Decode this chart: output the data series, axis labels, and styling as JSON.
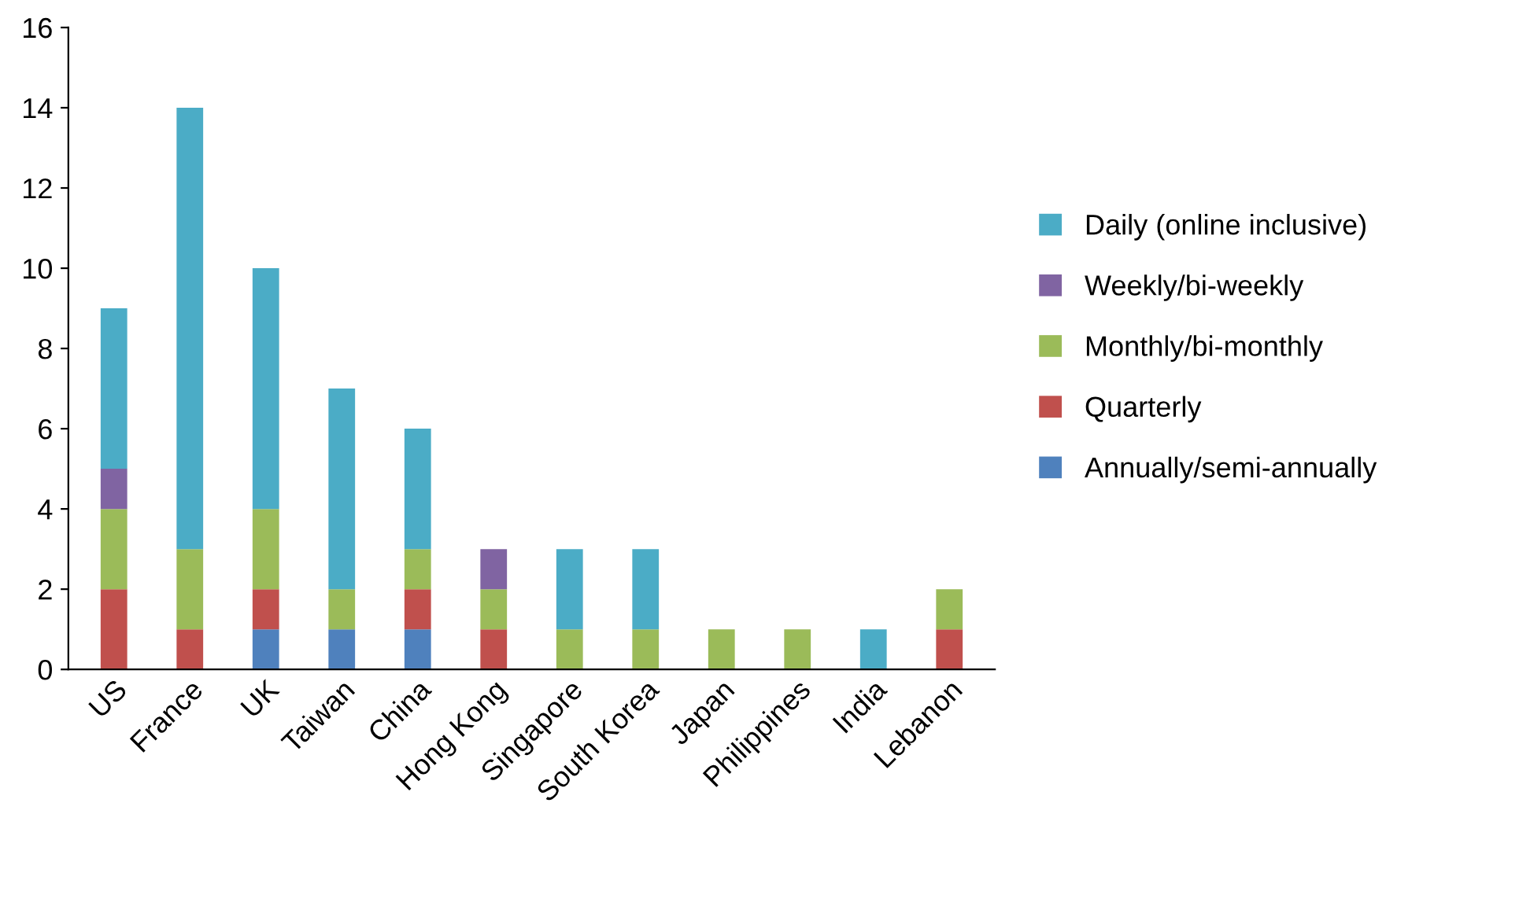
{
  "chart_data": {
    "type": "bar",
    "stacked": true,
    "categories": [
      "US",
      "France",
      "UK",
      "Taiwan",
      "China",
      "Hong Kong",
      "Singapore",
      "South Korea",
      "Japan",
      "Philippines",
      "India",
      "Lebanon"
    ],
    "series": [
      {
        "name": "Annually/semi-annually",
        "color": "#4f81bd",
        "values": [
          0,
          0,
          1,
          1,
          1,
          0,
          0,
          0,
          0,
          0,
          0,
          0
        ]
      },
      {
        "name": "Quarterly",
        "color": "#c0504d",
        "values": [
          2,
          1,
          1,
          0,
          1,
          1,
          0,
          0,
          0,
          0,
          0,
          1
        ]
      },
      {
        "name": "Monthly/bi-monthly",
        "color": "#9bbb59",
        "values": [
          2,
          2,
          2,
          1,
          1,
          1,
          1,
          1,
          1,
          1,
          0,
          1
        ]
      },
      {
        "name": "Weekly/bi-weekly",
        "color": "#8064a2",
        "values": [
          1,
          0,
          0,
          0,
          0,
          1,
          0,
          0,
          0,
          0,
          0,
          0
        ]
      },
      {
        "name": "Daily (online inclusive)",
        "color": "#4bacc6",
        "values": [
          4,
          11,
          6,
          5,
          3,
          0,
          2,
          2,
          0,
          0,
          1,
          0
        ]
      }
    ],
    "ylim": [
      0,
      16
    ],
    "yticks": [
      0,
      2,
      4,
      6,
      8,
      10,
      12,
      14,
      16
    ],
    "grid": false,
    "legend": "right"
  }
}
